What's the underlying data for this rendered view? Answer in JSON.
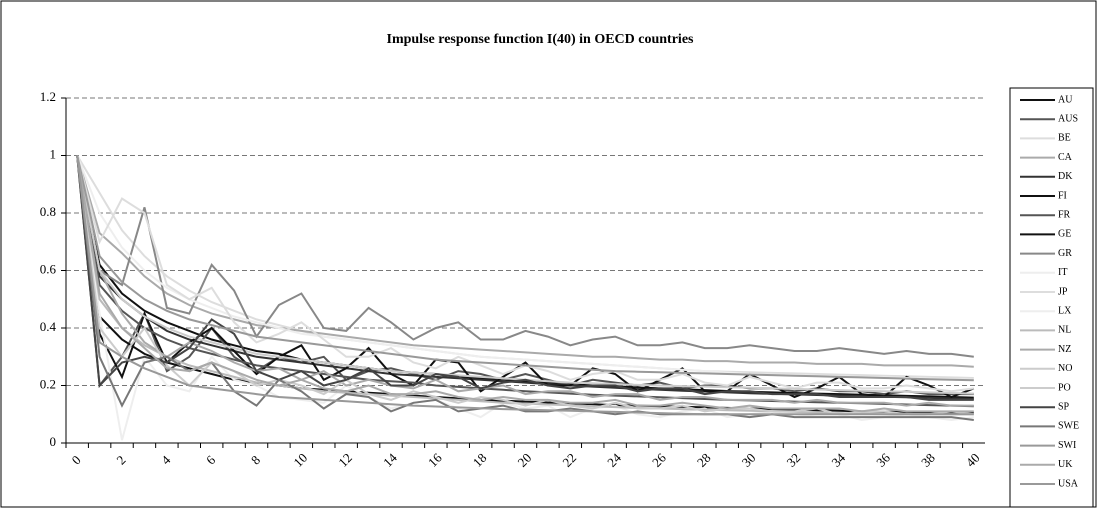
{
  "chart_data": {
    "type": "line",
    "title": "Impulse response function I(40) in OECD countries",
    "categories": [
      "0",
      null,
      "2",
      null,
      "4",
      null,
      "6",
      null,
      "8",
      null,
      "10",
      null,
      "12",
      null,
      "14",
      null,
      "16",
      null,
      "18",
      null,
      "20",
      null,
      "22",
      null,
      "24",
      null,
      "26",
      null,
      "28",
      null,
      "30",
      null,
      "32",
      null,
      "34",
      null,
      "36",
      null,
      "38",
      null,
      "40"
    ],
    "ylim": [
      0,
      1.2
    ],
    "yticks": [
      0,
      0.2,
      0.4,
      0.6,
      0.8,
      1,
      1.2
    ],
    "grid": true,
    "legend": "right",
    "series": [
      {
        "name": "AU",
        "color": "#111111",
        "values": [
          1,
          0.62,
          0.52,
          0.46,
          0.42,
          0.39,
          0.36,
          0.34,
          0.32,
          0.31,
          0.29,
          0.28,
          0.27,
          0.26,
          0.25,
          0.245,
          0.24,
          0.23,
          0.225,
          0.22,
          0.215,
          0.21,
          0.205,
          0.2,
          0.197,
          0.193,
          0.19,
          0.187,
          0.184,
          0.181,
          0.178,
          0.176,
          0.174,
          0.172,
          0.17,
          0.168,
          0.166,
          0.164,
          0.162,
          0.16,
          0.158
        ]
      },
      {
        "name": "AUS",
        "color": "#555555",
        "values": [
          1,
          0.2,
          0.3,
          0.45,
          0.25,
          0.3,
          0.4,
          0.3,
          0.25,
          0.3,
          0.28,
          0.3,
          0.22,
          0.25,
          0.26,
          0.24,
          0.22,
          0.25,
          0.24,
          0.22,
          0.24,
          0.22,
          0.2,
          0.22,
          0.21,
          0.2,
          0.21,
          0.19,
          0.2,
          0.2,
          0.19,
          0.19,
          0.18,
          0.19,
          0.18,
          0.18,
          0.17,
          0.18,
          0.17,
          0.17,
          0.17
        ]
      },
      {
        "name": "BE",
        "color": "#dddddd",
        "values": [
          1,
          0.87,
          0.74,
          0.65,
          0.58,
          0.53,
          0.49,
          0.46,
          0.43,
          0.41,
          0.39,
          0.37,
          0.36,
          0.35,
          0.34,
          0.33,
          0.32,
          0.31,
          0.3,
          0.295,
          0.29,
          0.285,
          0.28,
          0.275,
          0.27,
          0.265,
          0.26,
          0.255,
          0.25,
          0.248,
          0.246,
          0.244,
          0.242,
          0.24,
          0.238,
          0.236,
          0.234,
          0.232,
          0.23,
          0.228,
          0.226
        ]
      },
      {
        "name": "CA",
        "color": "#aaaaaa",
        "values": [
          1,
          0.73,
          0.66,
          0.58,
          0.52,
          0.48,
          0.45,
          0.43,
          0.41,
          0.4,
          0.39,
          0.38,
          0.37,
          0.36,
          0.35,
          0.34,
          0.335,
          0.33,
          0.325,
          0.32,
          0.315,
          0.31,
          0.305,
          0.3,
          0.3,
          0.295,
          0.29,
          0.29,
          0.285,
          0.285,
          0.28,
          0.28,
          0.28,
          0.275,
          0.275,
          0.275,
          0.27,
          0.27,
          0.27,
          0.27,
          0.265
        ]
      },
      {
        "name": "DK",
        "color": "#333333",
        "values": [
          1,
          0.58,
          0.5,
          0.44,
          0.39,
          0.36,
          0.34,
          0.32,
          0.3,
          0.29,
          0.28,
          0.27,
          0.26,
          0.25,
          0.24,
          0.235,
          0.23,
          0.225,
          0.22,
          0.215,
          0.21,
          0.205,
          0.2,
          0.196,
          0.192,
          0.188,
          0.185,
          0.182,
          0.179,
          0.176,
          0.173,
          0.171,
          0.169,
          0.167,
          0.165,
          0.163,
          0.161,
          0.159,
          0.157,
          0.155,
          0.153
        ]
      },
      {
        "name": "FI",
        "color": "#111111",
        "values": [
          1,
          0.38,
          0.23,
          0.45,
          0.28,
          0.35,
          0.4,
          0.32,
          0.24,
          0.3,
          0.34,
          0.22,
          0.26,
          0.33,
          0.24,
          0.2,
          0.29,
          0.28,
          0.18,
          0.23,
          0.28,
          0.2,
          0.2,
          0.26,
          0.24,
          0.18,
          0.22,
          0.26,
          0.18,
          0.18,
          0.24,
          0.2,
          0.16,
          0.19,
          0.23,
          0.17,
          0.16,
          0.23,
          0.2,
          0.16,
          0.19
        ]
      },
      {
        "name": "FR",
        "color": "#555555",
        "values": [
          1,
          0.55,
          0.46,
          0.4,
          0.36,
          0.33,
          0.31,
          0.29,
          0.27,
          0.26,
          0.25,
          0.24,
          0.23,
          0.22,
          0.215,
          0.21,
          0.2,
          0.195,
          0.19,
          0.185,
          0.18,
          0.176,
          0.172,
          0.168,
          0.165,
          0.162,
          0.159,
          0.156,
          0.153,
          0.15,
          0.148,
          0.146,
          0.144,
          0.142,
          0.14,
          0.138,
          0.136,
          0.134,
          0.132,
          0.13,
          0.128
        ]
      },
      {
        "name": "GE",
        "color": "#111111",
        "values": [
          1,
          0.44,
          0.36,
          0.31,
          0.28,
          0.26,
          0.24,
          0.22,
          0.21,
          0.2,
          0.19,
          0.185,
          0.18,
          0.175,
          0.17,
          0.165,
          0.16,
          0.155,
          0.15,
          0.147,
          0.144,
          0.141,
          0.138,
          0.135,
          0.132,
          0.13,
          0.128,
          0.126,
          0.124,
          0.122,
          0.12,
          0.118,
          0.116,
          0.114,
          0.112,
          0.11,
          0.109,
          0.108,
          0.107,
          0.106,
          0.105
        ]
      },
      {
        "name": "GR",
        "color": "#888888",
        "values": [
          1,
          0.6,
          0.55,
          0.82,
          0.47,
          0.45,
          0.62,
          0.53,
          0.37,
          0.48,
          0.52,
          0.4,
          0.39,
          0.47,
          0.42,
          0.36,
          0.4,
          0.42,
          0.36,
          0.36,
          0.39,
          0.37,
          0.34,
          0.36,
          0.37,
          0.34,
          0.34,
          0.35,
          0.33,
          0.33,
          0.34,
          0.33,
          0.32,
          0.32,
          0.33,
          0.32,
          0.31,
          0.32,
          0.31,
          0.31,
          0.3
        ]
      },
      {
        "name": "IT",
        "color": "#eeeeee",
        "values": [
          1,
          0.8,
          0.68,
          0.6,
          0.54,
          0.5,
          0.47,
          0.44,
          0.42,
          0.4,
          0.38,
          0.37,
          0.36,
          0.35,
          0.34,
          0.33,
          0.32,
          0.31,
          0.3,
          0.295,
          0.29,
          0.285,
          0.28,
          0.275,
          0.27,
          0.265,
          0.26,
          0.255,
          0.25,
          0.245,
          0.24,
          0.238,
          0.236,
          0.234,
          0.232,
          0.23,
          0.228,
          0.226,
          0.224,
          0.222,
          0.22
        ]
      },
      {
        "name": "JP",
        "color": "#dddddd",
        "values": [
          1,
          0.7,
          0.85,
          0.8,
          0.55,
          0.5,
          0.54,
          0.42,
          0.35,
          0.38,
          0.42,
          0.36,
          0.3,
          0.3,
          0.33,
          0.28,
          0.26,
          0.3,
          0.27,
          0.24,
          0.27,
          0.25,
          0.22,
          0.24,
          0.25,
          0.22,
          0.22,
          0.24,
          0.21,
          0.2,
          0.23,
          0.21,
          0.19,
          0.21,
          0.21,
          0.19,
          0.19,
          0.2,
          0.19,
          0.18,
          0.19
        ]
      },
      {
        "name": "LX",
        "color": "#eeeeee",
        "values": [
          1,
          0.45,
          0.01,
          0.3,
          0.2,
          0.18,
          0.3,
          0.22,
          0.2,
          0.16,
          0.15,
          0.14,
          0.2,
          0.16,
          0.12,
          0.14,
          0.15,
          0.12,
          0.09,
          0.14,
          0.12,
          0.13,
          0.09,
          0.12,
          0.13,
          0.1,
          0.09,
          0.11,
          0.12,
          0.09,
          0.1,
          0.11,
          0.09,
          0.1,
          0.1,
          0.08,
          0.09,
          0.1,
          0.09,
          0.08,
          0.09
        ]
      },
      {
        "name": "NL",
        "color": "#bbbbbb",
        "values": [
          1,
          0.5,
          0.4,
          0.34,
          0.3,
          0.27,
          0.25,
          0.23,
          0.21,
          0.2,
          0.19,
          0.18,
          0.175,
          0.17,
          0.165,
          0.16,
          0.155,
          0.15,
          0.145,
          0.14,
          0.137,
          0.134,
          0.131,
          0.128,
          0.125,
          0.122,
          0.12,
          0.118,
          0.116,
          0.114,
          0.112,
          0.11,
          0.108,
          0.106,
          0.104,
          0.102,
          0.1,
          0.1,
          0.1,
          0.1,
          0.1
        ]
      },
      {
        "name": "NZ",
        "color": "#aaaaaa",
        "values": [
          1,
          0.6,
          0.45,
          0.35,
          0.3,
          0.35,
          0.32,
          0.28,
          0.25,
          0.26,
          0.22,
          0.25,
          0.2,
          0.22,
          0.2,
          0.19,
          0.22,
          0.18,
          0.19,
          0.2,
          0.17,
          0.18,
          0.18,
          0.16,
          0.17,
          0.17,
          0.15,
          0.16,
          0.16,
          0.15,
          0.15,
          0.15,
          0.14,
          0.15,
          0.14,
          0.14,
          0.14,
          0.13,
          0.14,
          0.13,
          0.13
        ]
      },
      {
        "name": "NO",
        "color": "#cccccc",
        "values": [
          1,
          0.4,
          0.3,
          0.4,
          0.27,
          0.2,
          0.28,
          0.25,
          0.2,
          0.22,
          0.2,
          0.17,
          0.22,
          0.17,
          0.15,
          0.18,
          0.16,
          0.14,
          0.16,
          0.15,
          0.13,
          0.15,
          0.13,
          0.12,
          0.14,
          0.12,
          0.12,
          0.13,
          0.11,
          0.12,
          0.12,
          0.11,
          0.11,
          0.12,
          0.1,
          0.11,
          0.11,
          0.1,
          0.1,
          0.11,
          0.1
        ]
      },
      {
        "name": "PO",
        "color": "#cccccc",
        "values": [
          1,
          0.6,
          0.5,
          0.44,
          0.4,
          0.37,
          0.35,
          0.33,
          0.31,
          0.3,
          0.29,
          0.28,
          0.27,
          0.26,
          0.25,
          0.245,
          0.24,
          0.235,
          0.23,
          0.225,
          0.22,
          0.215,
          0.21,
          0.208,
          0.205,
          0.202,
          0.2,
          0.198,
          0.196,
          0.194,
          0.192,
          0.19,
          0.188,
          0.186,
          0.184,
          0.182,
          0.18,
          0.178,
          0.176,
          0.174,
          0.172
        ]
      },
      {
        "name": "SP",
        "color": "#444444",
        "values": [
          1,
          0.2,
          0.28,
          0.3,
          0.28,
          0.33,
          0.43,
          0.38,
          0.25,
          0.22,
          0.25,
          0.2,
          0.22,
          0.26,
          0.2,
          0.2,
          0.24,
          0.23,
          0.19,
          0.21,
          0.22,
          0.2,
          0.19,
          0.2,
          0.2,
          0.18,
          0.19,
          0.19,
          0.17,
          0.18,
          0.18,
          0.17,
          0.17,
          0.17,
          0.16,
          0.16,
          0.16,
          0.16,
          0.15,
          0.15,
          0.15
        ]
      },
      {
        "name": "SWE",
        "color": "#777777",
        "values": [
          1,
          0.3,
          0.13,
          0.28,
          0.3,
          0.25,
          0.28,
          0.18,
          0.13,
          0.22,
          0.18,
          0.12,
          0.17,
          0.16,
          0.11,
          0.14,
          0.15,
          0.11,
          0.12,
          0.13,
          0.11,
          0.11,
          0.12,
          0.11,
          0.1,
          0.11,
          0.1,
          0.1,
          0.1,
          0.1,
          0.09,
          0.1,
          0.09,
          0.09,
          0.09,
          0.09,
          0.09,
          0.09,
          0.09,
          0.09,
          0.08
        ]
      },
      {
        "name": "SWI",
        "color": "#999999",
        "values": [
          1,
          0.65,
          0.56,
          0.5,
          0.46,
          0.43,
          0.41,
          0.39,
          0.37,
          0.36,
          0.35,
          0.34,
          0.33,
          0.32,
          0.31,
          0.3,
          0.29,
          0.285,
          0.28,
          0.275,
          0.27,
          0.265,
          0.26,
          0.255,
          0.25,
          0.248,
          0.246,
          0.244,
          0.242,
          0.24,
          0.238,
          0.236,
          0.234,
          0.232,
          0.23,
          0.228,
          0.226,
          0.224,
          0.222,
          0.22,
          0.218
        ]
      },
      {
        "name": "UK",
        "color": "#aaaaaa",
        "values": [
          1,
          0.52,
          0.4,
          0.33,
          0.26,
          0.25,
          0.28,
          0.25,
          0.22,
          0.2,
          0.22,
          0.19,
          0.18,
          0.2,
          0.17,
          0.17,
          0.18,
          0.16,
          0.15,
          0.16,
          0.15,
          0.15,
          0.14,
          0.14,
          0.15,
          0.13,
          0.13,
          0.14,
          0.13,
          0.12,
          0.13,
          0.12,
          0.12,
          0.12,
          0.12,
          0.11,
          0.12,
          0.11,
          0.11,
          0.11,
          0.11
        ]
      },
      {
        "name": "USA",
        "color": "#999999",
        "values": [
          1,
          0.35,
          0.3,
          0.26,
          0.23,
          0.2,
          0.19,
          0.18,
          0.17,
          0.16,
          0.155,
          0.15,
          0.145,
          0.14,
          0.135,
          0.13,
          0.127,
          0.124,
          0.121,
          0.118,
          0.116,
          0.114,
          0.112,
          0.11,
          0.108,
          0.106,
          0.104,
          0.102,
          0.1,
          0.1,
          0.1,
          0.1,
          0.1,
          0.1,
          0.1,
          0.1,
          0.1,
          0.1,
          0.1,
          0.1,
          0.1
        ]
      }
    ]
  }
}
